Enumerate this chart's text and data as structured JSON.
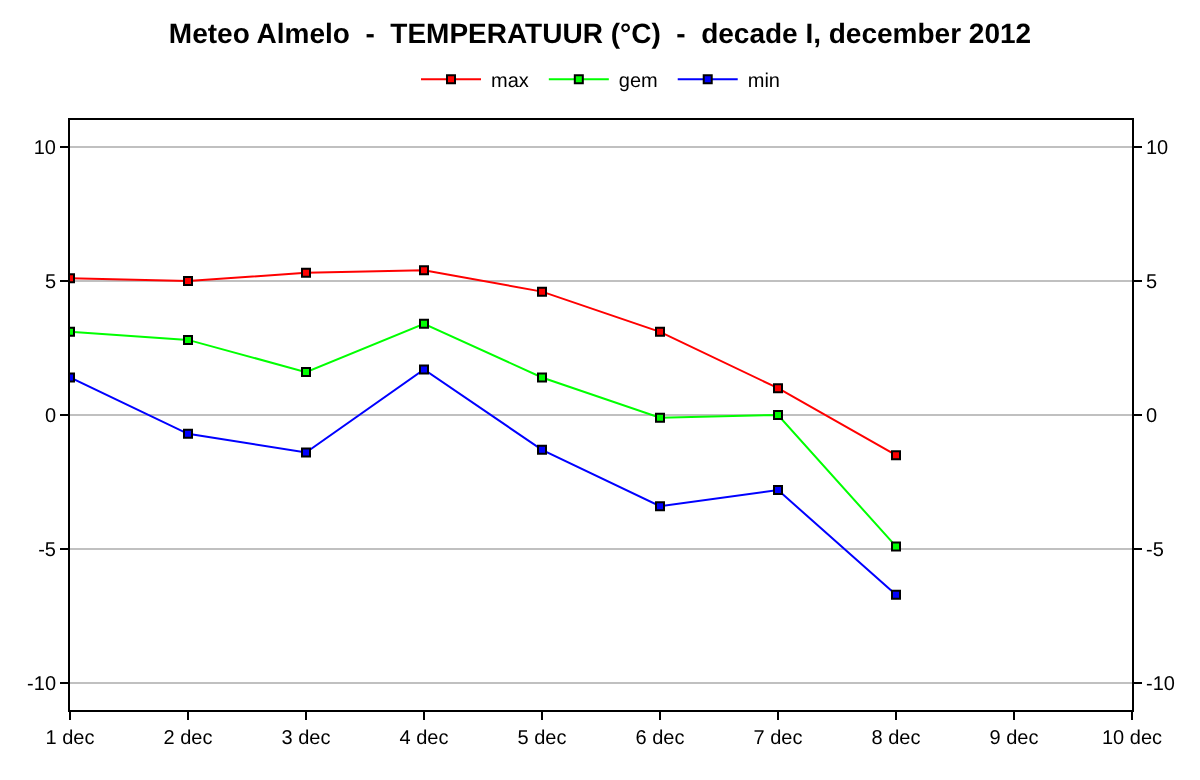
{
  "chart_data": {
    "type": "line",
    "title": "Meteo Almelo  -  TEMPERATUUR (°C)  -  decade I, december 2012",
    "x": [
      "--12-01",
      "--12-02",
      "--12-03",
      "--12-04",
      "--12-05",
      "--12-06",
      "--12-07",
      "--12-08"
    ],
    "series": [
      {
        "name": "max",
        "color": "#ff0000",
        "values": [
          5.1,
          5.0,
          5.3,
          5.4,
          4.6,
          3.1,
          1.0,
          -1.5
        ]
      },
      {
        "name": "gem",
        "color": "#00ff00",
        "values": [
          3.1,
          2.8,
          1.6,
          3.4,
          1.4,
          -0.1,
          0.0,
          -4.9
        ]
      },
      {
        "name": "min",
        "color": "#0000ff",
        "values": [
          1.4,
          -0.7,
          -1.4,
          1.7,
          -1.3,
          -3.4,
          -2.8,
          -6.7
        ]
      }
    ],
    "xlim": [
      "--12-01",
      "--12-10"
    ],
    "xticks": [
      {
        "value": "--12-01",
        "label": "1 dec"
      },
      {
        "value": "--12-02",
        "label": "2 dec"
      },
      {
        "value": "--12-03",
        "label": "3 dec"
      },
      {
        "value": "--12-04",
        "label": "4 dec"
      },
      {
        "value": "--12-05",
        "label": "5 dec"
      },
      {
        "value": "--12-06",
        "label": "6 dec"
      },
      {
        "value": "--12-07",
        "label": "7 dec"
      },
      {
        "value": "--12-08",
        "label": "8 dec"
      },
      {
        "value": "--12-09",
        "label": "9 dec"
      },
      {
        "value": "--12-10",
        "label": "10 dec"
      }
    ],
    "ylim": [
      -11,
      11
    ],
    "yticks": [
      -10,
      -5,
      0,
      5,
      10
    ],
    "y2lim": [
      -11,
      11
    ],
    "y2ticks": [
      -10,
      -5,
      0,
      5,
      10
    ],
    "grid": "y",
    "legend": "top",
    "marker": "square",
    "line_style": "solid"
  }
}
